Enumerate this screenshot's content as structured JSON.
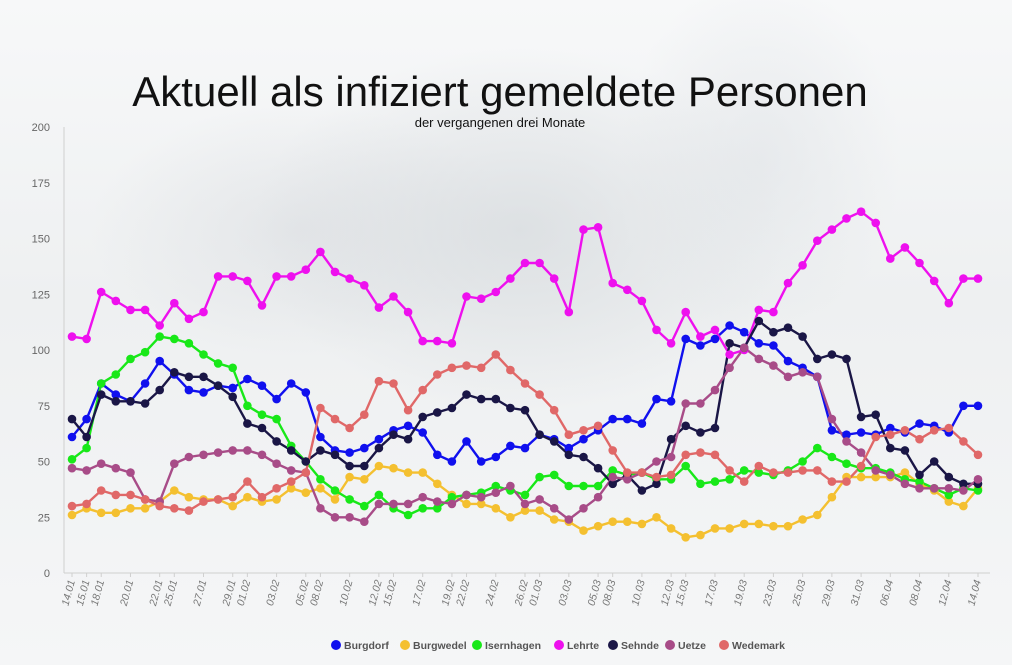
{
  "chart_data": {
    "type": "line",
    "title": "Aktuell als infiziert gemeldete Personen",
    "subtitle": "der vergangenen drei Monate",
    "xlabel": "",
    "ylabel": "",
    "ylim": [
      0,
      200
    ],
    "yticks": [
      0,
      25,
      50,
      75,
      100,
      125,
      150,
      175,
      200
    ],
    "grid": false,
    "legend": "bottom-center",
    "x": [
      "14.01",
      "15.01",
      "18.01",
      "19.01",
      "20.01",
      "21.01",
      "22.01",
      "25.01",
      "26.01",
      "27.01",
      "28.01",
      "29.01",
      "01.02",
      "02.02",
      "03.02",
      "04.02",
      "05.02",
      "08.02",
      "09.02",
      "10.02",
      "11.02",
      "12.02",
      "15.02",
      "16.02",
      "17.02",
      "18.02",
      "19.02",
      "22.02",
      "23.02",
      "24.02",
      "25.02",
      "26.02",
      "01.03",
      "02.03",
      "03.03",
      "04.03",
      "05.03",
      "08.03",
      "09.03",
      "10.03",
      "11.03",
      "12.03",
      "15.03",
      "16.03",
      "17.03",
      "18.03",
      "19.03",
      "22.03",
      "23.03",
      "24.03",
      "25.03",
      "26.03",
      "29.03",
      "30.03",
      "31.03",
      "01.04",
      "06.04",
      "07.04",
      "08.04",
      "09.04",
      "12.04",
      "13.04",
      "14.04"
    ],
    "x_tick_labels": [
      "14.01",
      "15.01",
      "18.01",
      "20.01",
      "22.01",
      "25.01",
      "27.01",
      "29.01",
      "01.02",
      "03.02",
      "05.02",
      "08.02",
      "10.02",
      "12.02",
      "15.02",
      "17.02",
      "19.02",
      "22.02",
      "24.02",
      "26.02",
      "01.03",
      "03.03",
      "05.03",
      "08.03",
      "10.03",
      "12.03",
      "15.03",
      "17.03",
      "19.03",
      "23.03",
      "25.03",
      "29.03",
      "31.03",
      "06.04",
      "08.04",
      "12.04",
      "14.04"
    ],
    "series": [
      {
        "name": "Burgdorf",
        "color": "#1010ee",
        "values": [
          61,
          69,
          85,
          80,
          77,
          85,
          95,
          89,
          82,
          81,
          84,
          83,
          87,
          84,
          78,
          85,
          81,
          61,
          55,
          54,
          56,
          60,
          64,
          66,
          63,
          53,
          50,
          59,
          50,
          52,
          57,
          56,
          62,
          60,
          56,
          60,
          64,
          69,
          69,
          67,
          78,
          77,
          105,
          102,
          105,
          111,
          108,
          103,
          102,
          95,
          92,
          88,
          64,
          62,
          63,
          62,
          65,
          63,
          67,
          66,
          63,
          75,
          75
        ]
      },
      {
        "name": "Burgwedel",
        "color": "#f4c030",
        "values": [
          26,
          29,
          27,
          27,
          29,
          29,
          32,
          37,
          34,
          33,
          33,
          30,
          34,
          32,
          33,
          38,
          36,
          38,
          33,
          43,
          42,
          48,
          47,
          45,
          45,
          40,
          35,
          31,
          31,
          29,
          25,
          28,
          28,
          24,
          23,
          19,
          21,
          23,
          23,
          22,
          25,
          20,
          16,
          17,
          20,
          20,
          22,
          22,
          21,
          21,
          24,
          26,
          34,
          43,
          43,
          43,
          43,
          45,
          40,
          37,
          32,
          30,
          38
        ]
      },
      {
        "name": "Isernhagen",
        "color": "#18e818",
        "values": [
          51,
          56,
          85,
          89,
          96,
          99,
          106,
          105,
          103,
          98,
          94,
          92,
          75,
          71,
          69,
          57,
          50,
          42,
          37,
          33,
          30,
          35,
          29,
          26,
          29,
          29,
          34,
          35,
          36,
          39,
          37,
          35,
          43,
          44,
          39,
          39,
          39,
          46,
          44,
          45,
          42,
          42,
          48,
          40,
          41,
          42,
          46,
          45,
          44,
          46,
          50,
          56,
          52,
          49,
          47,
          47,
          45,
          42,
          41,
          38,
          35,
          38,
          37
        ]
      },
      {
        "name": "Lehrte",
        "color": "#ee10ee",
        "values": [
          106,
          105,
          126,
          122,
          118,
          118,
          111,
          121,
          114,
          117,
          133,
          133,
          131,
          120,
          133,
          133,
          136,
          144,
          135,
          132,
          129,
          119,
          124,
          117,
          104,
          104,
          103,
          124,
          123,
          126,
          132,
          139,
          139,
          132,
          117,
          154,
          155,
          130,
          127,
          122,
          109,
          103,
          117,
          106,
          109,
          98,
          100,
          118,
          117,
          130,
          138,
          149,
          154,
          159,
          162,
          157,
          141,
          146,
          139,
          131,
          121,
          132,
          132
        ]
      },
      {
        "name": "Sehnde",
        "color": "#1a1646",
        "values": [
          69,
          61,
          80,
          77,
          77,
          76,
          82,
          90,
          88,
          88,
          84,
          79,
          67,
          65,
          59,
          55,
          50,
          55,
          53,
          48,
          48,
          56,
          62,
          60,
          70,
          72,
          74,
          80,
          78,
          78,
          74,
          73,
          62,
          59,
          53,
          52,
          47,
          40,
          44,
          37,
          40,
          60,
          66,
          63,
          65,
          103,
          101,
          113,
          108,
          110,
          106,
          96,
          98,
          96,
          70,
          71,
          56,
          55,
          44,
          50,
          43,
          40,
          40
        ]
      },
      {
        "name": "Uetze",
        "color": "#a84c88",
        "values": [
          47,
          46,
          49,
          47,
          45,
          33,
          32,
          49,
          52,
          53,
          54,
          55,
          55,
          53,
          49,
          46,
          45,
          29,
          25,
          25,
          23,
          31,
          31,
          31,
          34,
          32,
          31,
          35,
          34,
          36,
          39,
          31,
          33,
          29,
          24,
          29,
          34,
          43,
          42,
          45,
          50,
          52,
          76,
          76,
          82,
          92,
          101,
          96,
          93,
          88,
          90,
          88,
          69,
          59,
          54,
          46,
          44,
          40,
          38,
          38,
          38,
          37,
          42
        ]
      },
      {
        "name": "Wedemark",
        "color": "#e06868",
        "values": [
          30,
          31,
          37,
          35,
          35,
          33,
          30,
          29,
          28,
          32,
          33,
          34,
          41,
          34,
          38,
          41,
          45,
          74,
          69,
          65,
          71,
          86,
          85,
          73,
          82,
          89,
          92,
          93,
          92,
          98,
          91,
          85,
          80,
          73,
          62,
          64,
          66,
          55,
          45,
          45,
          43,
          44,
          53,
          54,
          53,
          46,
          41,
          48,
          45,
          45,
          46,
          46,
          41,
          41,
          48,
          61,
          62,
          64,
          60,
          64,
          65,
          59,
          53
        ]
      }
    ]
  }
}
